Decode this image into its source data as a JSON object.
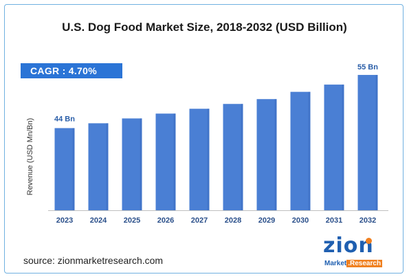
{
  "title": "U.S. Dog Food Market Size, 2018-2032 (USD Billion)",
  "cagr_label": "CAGR : 4.70%",
  "source": "source: zionmarketresearch.com",
  "logo": {
    "name": "zion",
    "sub1": "Market",
    "sub2": "Research"
  },
  "colors": {
    "bar": "#4a7fd4",
    "bar_dark": "#3a6cc0",
    "cagr_bg": "#2b74d6",
    "label": "#2a5ea8",
    "border": "#6fb0e0"
  },
  "chart_data": {
    "type": "bar",
    "title": "U.S. Dog Food Market Size, 2018-2032 (USD Billion)",
    "xlabel": "",
    "ylabel": "Revenue (USD Mn/Bn)",
    "categories": [
      "2023",
      "2024",
      "2025",
      "2026",
      "2027",
      "2028",
      "2029",
      "2030",
      "2031",
      "2032"
    ],
    "series": [
      {
        "values": [
          44,
          45,
          46,
          47,
          48,
          49,
          50,
          51.5,
          53,
          55
        ]
      }
    ],
    "data_labels": {
      "first": "44 Bn",
      "last": "55 Bn"
    },
    "ylim": [
      27,
      56
    ],
    "grid": false,
    "legend": "none"
  }
}
